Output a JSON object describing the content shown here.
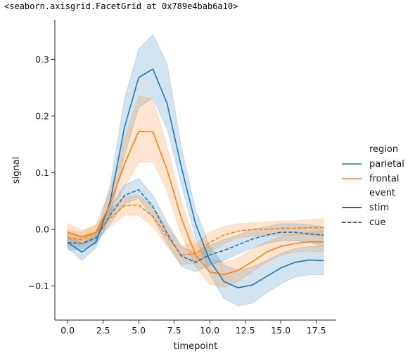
{
  "header": {
    "repr_text": "<seaborn.axisgrid.FacetGrid at 0x789e4bab6a10>"
  },
  "colors": {
    "parietal": "#1f77b4",
    "frontal": "#ff7f0e",
    "axis": "#262626"
  },
  "chart_data": {
    "type": "line",
    "title": "",
    "xlabel": "timepoint",
    "ylabel": "signal",
    "xlim": [
      -0.9,
      18.9
    ],
    "ylim": [
      -0.16,
      0.37
    ],
    "xticks": [
      0,
      2.5,
      5,
      7.5,
      10,
      12.5,
      15,
      17.5
    ],
    "xtick_labels": [
      "0.0",
      "2.5",
      "5.0",
      "7.5",
      "10.0",
      "12.5",
      "15.0",
      "17.5"
    ],
    "yticks": [
      -0.1,
      0.0,
      0.1,
      0.2,
      0.3
    ],
    "ytick_labels": [
      "−0.1",
      "0.0",
      "0.1",
      "0.2",
      "0.3"
    ],
    "grid": false,
    "legend_position": "right",
    "legend": {
      "hue_title": "region",
      "hue_entries": [
        "parietal",
        "frontal"
      ],
      "style_title": "event",
      "style_entries": [
        "stim",
        "cue"
      ]
    },
    "x": [
      0,
      1,
      2,
      3,
      4,
      5,
      6,
      7,
      8,
      9,
      10,
      11,
      12,
      13,
      14,
      15,
      16,
      17,
      18
    ],
    "series": [
      {
        "name": "parietal stim",
        "region": "parietal",
        "event": "stim",
        "style": "solid",
        "values": [
          -0.023,
          -0.04,
          -0.022,
          0.05,
          0.18,
          0.268,
          0.283,
          0.222,
          0.11,
          0.01,
          -0.055,
          -0.092,
          -0.103,
          -0.098,
          -0.083,
          -0.068,
          -0.058,
          -0.054,
          -0.055
        ],
        "ci_low": [
          -0.032,
          -0.055,
          -0.032,
          0.025,
          0.13,
          0.215,
          0.232,
          0.178,
          0.08,
          -0.015,
          -0.08,
          -0.122,
          -0.135,
          -0.13,
          -0.112,
          -0.096,
          -0.084,
          -0.08,
          -0.08
        ],
        "ci_high": [
          -0.012,
          -0.025,
          -0.008,
          0.078,
          0.23,
          0.318,
          0.344,
          0.292,
          0.145,
          0.035,
          -0.03,
          -0.063,
          -0.072,
          -0.066,
          -0.055,
          -0.042,
          -0.034,
          -0.03,
          -0.03
        ]
      },
      {
        "name": "frontal stim",
        "region": "frontal",
        "event": "stim",
        "style": "solid",
        "values": [
          -0.005,
          -0.013,
          -0.005,
          0.045,
          0.115,
          0.173,
          0.172,
          0.105,
          0.02,
          -0.045,
          -0.075,
          -0.08,
          -0.072,
          -0.057,
          -0.04,
          -0.03,
          -0.025,
          -0.022,
          -0.022
        ],
        "ci_low": [
          -0.018,
          -0.025,
          -0.015,
          0.025,
          0.075,
          0.118,
          0.12,
          0.068,
          -0.01,
          -0.065,
          -0.097,
          -0.102,
          -0.092,
          -0.075,
          -0.058,
          -0.046,
          -0.04,
          -0.038,
          -0.04
        ],
        "ci_high": [
          0.01,
          -0.002,
          0.008,
          0.07,
          0.16,
          0.235,
          0.23,
          0.145,
          0.05,
          -0.022,
          -0.052,
          -0.058,
          -0.05,
          -0.035,
          -0.022,
          -0.012,
          -0.008,
          -0.005,
          -0.002
        ]
      },
      {
        "name": "parietal cue",
        "region": "parietal",
        "event": "cue",
        "style": "dashed",
        "values": [
          -0.023,
          -0.025,
          -0.015,
          0.025,
          0.06,
          0.07,
          0.04,
          -0.007,
          -0.047,
          -0.058,
          -0.045,
          -0.037,
          -0.027,
          -0.017,
          -0.01,
          -0.005,
          -0.005,
          -0.008,
          -0.01
        ],
        "ci_low": [
          -0.037,
          -0.035,
          -0.025,
          0.01,
          0.045,
          0.055,
          0.02,
          -0.025,
          -0.065,
          -0.075,
          -0.063,
          -0.055,
          -0.043,
          -0.033,
          -0.025,
          -0.02,
          -0.02,
          -0.023,
          -0.03
        ],
        "ci_high": [
          -0.005,
          -0.013,
          -0.005,
          0.04,
          0.078,
          0.09,
          0.06,
          0.012,
          -0.03,
          -0.042,
          -0.028,
          -0.018,
          -0.01,
          0.0,
          0.005,
          0.01,
          0.01,
          0.008,
          0.005
        ]
      },
      {
        "name": "frontal cue",
        "region": "frontal",
        "event": "cue",
        "style": "dashed",
        "values": [
          -0.015,
          -0.018,
          -0.005,
          0.02,
          0.042,
          0.043,
          0.023,
          -0.012,
          -0.045,
          -0.043,
          -0.023,
          -0.01,
          -0.003,
          0.0,
          0.0,
          0.002,
          0.002,
          0.003,
          0.003
        ],
        "ci_low": [
          -0.03,
          -0.03,
          -0.018,
          0.005,
          0.025,
          0.025,
          0.005,
          -0.03,
          -0.062,
          -0.06,
          -0.04,
          -0.025,
          -0.015,
          -0.012,
          -0.012,
          -0.01,
          -0.01,
          -0.01,
          -0.012
        ],
        "ci_high": [
          0.0,
          -0.005,
          0.008,
          0.035,
          0.058,
          0.06,
          0.04,
          0.005,
          -0.028,
          -0.025,
          -0.005,
          0.005,
          0.01,
          0.012,
          0.013,
          0.015,
          0.015,
          0.017,
          0.018
        ]
      }
    ]
  }
}
